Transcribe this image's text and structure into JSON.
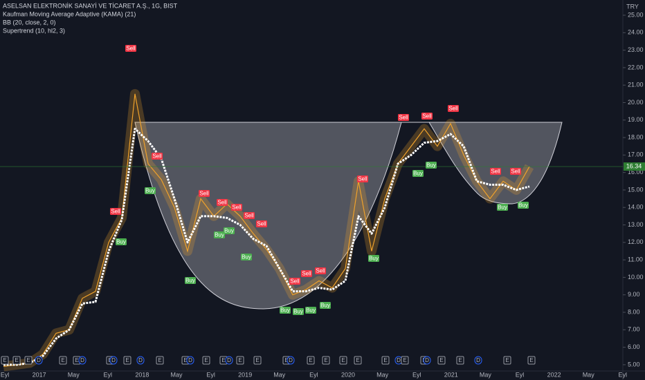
{
  "chart_data": {
    "type": "line",
    "title": "ASELSAN ELEKTRONİK SANAYİ VE TİCARET A.Ş., 1G, BIST",
    "indicators": [
      "Kaufman Moving Average Adaptive (KAMA) (21)",
      "BB (20, close, 2, 0)",
      "Supertrend (10, hl2, 3)"
    ],
    "currency": "TRY",
    "last_price": 16.34,
    "x_axis_labels": [
      "Eyl",
      "2017",
      "May",
      "Eyl",
      "2018",
      "May",
      "Eyl",
      "2019",
      "May",
      "Eyl",
      "2020",
      "May",
      "Eyl",
      "2021",
      "May",
      "Eyl",
      "2022",
      "May",
      "Eyl"
    ],
    "ylim": [
      4.64,
      25.87
    ],
    "yticks": [
      {
        "value": 5,
        "label": "5.00"
      },
      {
        "value": 6,
        "label": "6.00"
      },
      {
        "value": 7,
        "label": "7.00"
      },
      {
        "value": 8,
        "label": "8.00"
      },
      {
        "value": 9,
        "label": "9.00"
      },
      {
        "value": 10,
        "label": "10.00"
      },
      {
        "value": 11,
        "label": "11.00"
      },
      {
        "value": 12,
        "label": "12.00"
      },
      {
        "value": 13,
        "label": "13.00"
      },
      {
        "value": 14,
        "label": "14.00"
      },
      {
        "value": 15,
        "label": "15.00"
      },
      {
        "value": 16,
        "label": "16.00"
      },
      {
        "value": 17,
        "label": "17.00"
      },
      {
        "value": 18,
        "label": "18.00"
      },
      {
        "value": 19,
        "label": "19.00"
      },
      {
        "value": 20,
        "label": "20.00"
      },
      {
        "value": 21,
        "label": "21.00"
      },
      {
        "value": 22,
        "label": "22.00"
      },
      {
        "value": 23,
        "label": "23.00"
      },
      {
        "value": 24,
        "label": "24.00"
      },
      {
        "value": 25,
        "label": "25.00"
      }
    ],
    "series": [
      {
        "name": "Price",
        "color": "#f0a22b",
        "values": [
          4.9,
          5.0,
          5.1,
          5.6,
          6.8,
          7.0,
          8.8,
          9.2,
          12.0,
          13.4,
          20.5,
          16.5,
          15.6,
          14.0,
          11.5,
          14.5,
          13.5,
          14.2,
          13.5,
          12.5,
          11.6,
          10.5,
          9.0,
          9.3,
          9.8,
          9.4,
          10.5,
          15.5,
          11.5,
          14.5,
          16.5,
          17.5,
          18.5,
          17.5,
          18.8,
          17.0,
          15.5,
          14.5,
          15.5,
          15.0,
          16.34
        ]
      },
      {
        "name": "KAMA",
        "color": "#ffffff",
        "values": [
          5.0,
          5.0,
          5.1,
          5.5,
          6.5,
          7.0,
          8.5,
          8.6,
          11.5,
          13.3,
          18.5,
          17.8,
          16.8,
          14.5,
          12.0,
          13.5,
          13.5,
          13.4,
          13.0,
          12.2,
          11.8,
          10.5,
          9.2,
          9.2,
          9.4,
          9.3,
          9.8,
          13.5,
          12.5,
          14.0,
          16.5,
          17.0,
          17.7,
          17.8,
          18.2,
          17.5,
          15.5,
          15.3,
          15.3,
          15.0,
          15.2
        ]
      }
    ],
    "signals": [
      "Sell",
      "Buy",
      "Sell",
      "Buy",
      "Sell",
      "Sell",
      "Sell",
      "Sell",
      "Sell",
      "Sell",
      "Buy",
      "Buy",
      "Buy",
      "Buy",
      "Sell",
      "Sell",
      "Sell",
      "Buy",
      "Buy",
      "Buy",
      "Buy",
      "Sell",
      "Buy",
      "Sell",
      "Sell",
      "Sell",
      "Buy",
      "Buy",
      "Sell",
      "Sell",
      "Buy",
      "Buy"
    ],
    "events": [
      "E",
      "E",
      "E",
      "D",
      "E",
      "E",
      "D",
      "E",
      "D",
      "E",
      "D",
      "E",
      "E",
      "D",
      "E",
      "E",
      "D",
      "E",
      "E",
      "E",
      "D",
      "E",
      "E",
      "E",
      "E",
      "E",
      "D",
      "E",
      "E",
      "D",
      "E",
      "E",
      "D",
      "E",
      "E"
    ]
  }
}
